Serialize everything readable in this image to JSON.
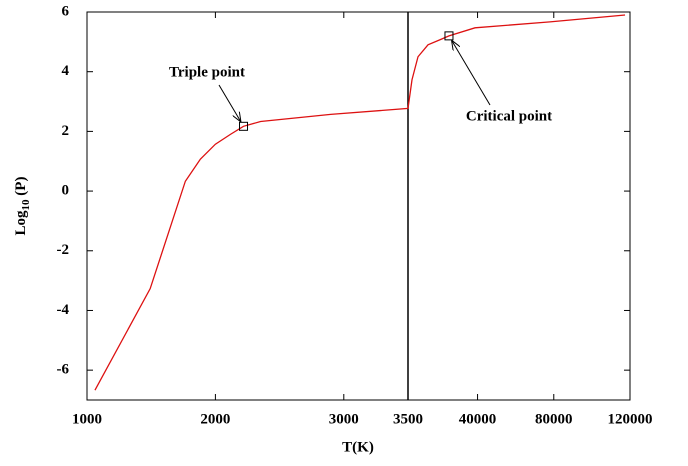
{
  "chart_data": {
    "type": "line",
    "x_label": "T(K)",
    "y_label": {
      "base": "Log",
      "sub": "10",
      "rest": " (P)"
    },
    "panels": [
      {
        "xlim": [
          1000,
          3500
        ],
        "xticks": [
          1000,
          2000,
          3000,
          3500
        ]
      },
      {
        "xlim": [
          3500,
          120000
        ],
        "xticks": [
          40000,
          80000,
          120000
        ]
      }
    ],
    "ylim": [
      -7,
      6
    ],
    "yticks": [
      -6,
      -4,
      -2,
      0,
      2,
      4,
      6
    ],
    "break_line_color": "#000000",
    "series": [
      {
        "name": "Log10 (P)",
        "color": "#dd1111",
        "x": [
          1062,
          1492,
          1766,
          1883,
          2000,
          2117,
          2219,
          2352,
          2898,
          3500,
          5600,
          8750,
          14000,
          20290,
          25000,
          38660,
          78000,
          117400
        ],
        "values": [
          -6.67,
          -3.27,
          0.33,
          1.07,
          1.57,
          1.9,
          2.17,
          2.33,
          2.57,
          2.77,
          3.73,
          4.5,
          4.9,
          5.07,
          5.2,
          5.47,
          5.67,
          5.9
        ]
      }
    ],
    "annotations": [
      {
        "text": "Triple point",
        "x": 2219,
        "y": 2.17
      },
      {
        "text": "Critical point",
        "x": 25000,
        "y": 5.2
      }
    ]
  }
}
